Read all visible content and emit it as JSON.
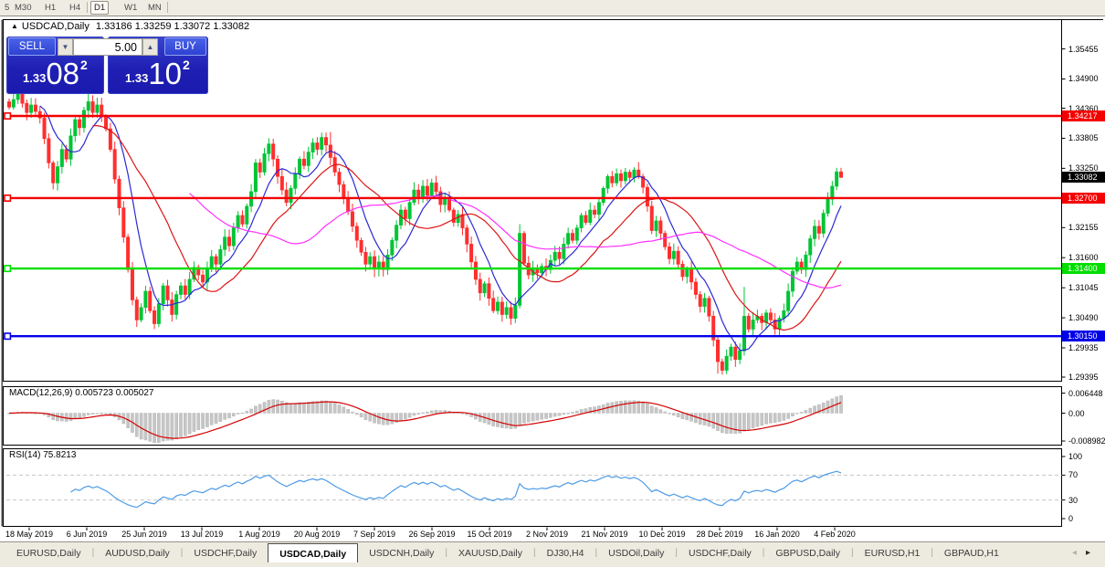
{
  "toolbar": {
    "timeframes": [
      {
        "label": "5",
        "selected": false
      },
      {
        "label": "M30",
        "selected": false
      },
      {
        "label": "H1",
        "selected": false
      },
      {
        "label": "H4",
        "selected": false
      },
      {
        "label": "D1",
        "selected": true
      },
      {
        "label": "W1",
        "selected": false
      },
      {
        "label": "MN",
        "selected": false
      }
    ]
  },
  "chart": {
    "title_arrow": "▲",
    "symbol": "USDCAD,Daily",
    "ohlc": "1.33186 1.33259 1.33072 1.33082"
  },
  "trade": {
    "sell_label": "SELL",
    "buy_label": "BUY",
    "volume": "5.00",
    "dec_icon": "▼",
    "inc_icon": "▲",
    "sell_prefix": "1.33",
    "sell_big": "08",
    "sell_sup": "2",
    "buy_prefix": "1.33",
    "buy_big": "10",
    "buy_sup": "2"
  },
  "macd": {
    "label": "MACD(12,26,9)",
    "value1": "0.005723",
    "value2": "0.005027"
  },
  "rsi": {
    "label": "RSI(14)",
    "value": "75.8213"
  },
  "tabs": {
    "items": [
      "EURUSD,Daily",
      "AUDUSD,Daily",
      "USDCHF,Daily",
      "USDCAD,Daily",
      "USDCNH,Daily",
      "XAUUSD,Daily",
      "DJ30,H4",
      "USDOil,Daily",
      "USDCHF,Daily",
      "GBPUSD,Daily",
      "EURUSD,H1",
      "GBPAUD,H1"
    ],
    "active": "USDCAD,Daily",
    "active_index": 3,
    "scroll_left": "◂",
    "scroll_right": "▸"
  },
  "chart_data": {
    "type": "candlestick",
    "symbol": "USDCAD",
    "timeframe": "Daily",
    "current_bar": {
      "open": 1.33186,
      "high": 1.33259,
      "low": 1.33072,
      "close": 1.33082
    },
    "current_price": {
      "value": 1.33082,
      "label": "1.33082",
      "badge_bg": "#000000",
      "badge_fg": "#FFFFFF"
    },
    "closes": [
      1.3438,
      1.3452,
      1.347,
      1.3445,
      1.3428,
      1.3442,
      1.343,
      1.3418,
      1.338,
      1.3335,
      1.3298,
      1.3328,
      1.336,
      1.3342,
      1.3385,
      1.3415,
      1.34,
      1.3432,
      1.3448,
      1.3428,
      1.3442,
      1.342,
      1.3398,
      1.336,
      1.3305,
      1.3252,
      1.3198,
      1.3138,
      1.3082,
      1.3045,
      1.3068,
      1.3098,
      1.3062,
      1.3038,
      1.3075,
      1.3108,
      1.3082,
      1.3055,
      1.3092,
      1.3108,
      1.3092,
      1.312,
      1.3142,
      1.3128,
      1.3115,
      1.314,
      1.3162,
      1.3148,
      1.3175,
      1.3198,
      1.3182,
      1.3215,
      1.3238,
      1.3222,
      1.3255,
      1.3282,
      1.3335,
      1.3318,
      1.3352,
      1.337,
      1.3342,
      1.331,
      1.3285,
      1.3262,
      1.3288,
      1.3315,
      1.3342,
      1.333,
      1.3355,
      1.3372,
      1.336,
      1.3382,
      1.3368,
      1.3345,
      1.3318,
      1.3295,
      1.327,
      1.3245,
      1.3218,
      1.3192,
      1.317,
      1.3148,
      1.3162,
      1.314,
      1.3152,
      1.3138,
      1.3165,
      1.3192,
      1.322,
      1.3248,
      1.3232,
      1.3262,
      1.3285,
      1.327,
      1.3292,
      1.3275,
      1.3298,
      1.3282,
      1.3258,
      1.3272,
      1.3248,
      1.3225,
      1.324,
      1.3215,
      1.3185,
      1.3152,
      1.312,
      1.3095,
      1.3112,
      1.3085,
      1.3062,
      1.3078,
      1.3055,
      1.3068,
      1.3048,
      1.3072,
      1.3205,
      1.315,
      1.3128,
      1.314,
      1.3132,
      1.3144,
      1.3138,
      1.3155,
      1.317,
      1.3158,
      1.3185,
      1.3205,
      1.3192,
      1.3215,
      1.3238,
      1.3225,
      1.3248,
      1.324,
      1.3262,
      1.3288,
      1.331,
      1.3298,
      1.3315,
      1.3302,
      1.3318,
      1.3308,
      1.3322,
      1.331,
      1.329,
      1.3255,
      1.321,
      1.3228,
      1.3205,
      1.318,
      1.3158,
      1.3172,
      1.3148,
      1.3125,
      1.3138,
      1.3115,
      1.3092,
      1.307,
      1.3085,
      1.3052,
      1.3008,
      1.2968,
      1.2952,
      1.2978,
      1.2995,
      1.2972,
      1.2988,
      1.3052,
      1.3028,
      1.3045,
      1.3052,
      1.304,
      1.3058,
      1.3045,
      1.3028,
      1.3048,
      1.3062,
      1.3098,
      1.3135,
      1.3152,
      1.3138,
      1.3165,
      1.3195,
      1.3218,
      1.3205,
      1.3242,
      1.3268,
      1.3292,
      1.33186,
      1.33082
    ],
    "wick_overrides": {
      "2": {
        "h": 1.3482
      },
      "10": {
        "l": 1.3286
      },
      "18": {
        "h": 1.347
      },
      "29": {
        "l": 1.3032
      },
      "33": {
        "l": 1.3028
      },
      "73": {
        "h": 1.3392
      },
      "83": {
        "l": 1.3124
      },
      "114": {
        "l": 1.3036
      },
      "116": {
        "h": 1.3222
      },
      "161": {
        "l": 1.2946
      },
      "167": {
        "h": 1.3106
      },
      "188": {
        "h": 1.3326
      },
      "189": {
        "h": 1.33259,
        "l": 1.33072
      }
    },
    "candle_up_color": "#00C435",
    "candle_down_color": "#FF2E2E",
    "horizontal_levels": [
      {
        "price": 1.34217,
        "label": "1.34217",
        "color": "#F50000",
        "badge_fg": "#FFFFFF"
      },
      {
        "price": 1.327,
        "label": "1.32700",
        "color": "#F50000",
        "badge_fg": "#FFFFFF"
      },
      {
        "price": 1.314,
        "label": "1.31400",
        "color": "#00DE00",
        "badge_fg": "#FFFFFF"
      },
      {
        "price": 1.3015,
        "label": "1.30150",
        "color": "#0000E8",
        "badge_fg": "#FFFFFF"
      }
    ],
    "price_axis_labels": [
      "1.35455",
      "1.34900",
      "1.34360",
      "1.33805",
      "1.33250",
      "1.32155",
      "1.31600",
      "1.31045",
      "1.30490",
      "1.29935",
      "1.29395"
    ],
    "date_labels": [
      "18 May 2019",
      "6 Jun 2019",
      "25 Jun 2019",
      "13 Jul 2019",
      "1 Aug 2019",
      "20 Aug 2019",
      "7 Sep 2019",
      "26 Sep 2019",
      "15 Oct 2019",
      "2 Nov 2019",
      "21 Nov 2019",
      "10 Dec 2019",
      "28 Dec 2019",
      "16 Jan 2020",
      "4 Feb 2020"
    ],
    "moving_averages": [
      {
        "period": 8,
        "color": "#2A2AD4"
      },
      {
        "period": 20,
        "color": "#DC1414"
      },
      {
        "period": 42,
        "color": "#FF30FF"
      }
    ],
    "macd": {
      "params": [
        12,
        26,
        9
      ],
      "hist_color": "#C6C6C6",
      "hist_stroke": "#B0B0B0",
      "signal_color": "#D40000",
      "axis_labels": [
        {
          "text": "0.006448",
          "value": 0.006448
        },
        {
          "text": "0.00",
          "value": 0
        },
        {
          "text": "-0.008982",
          "value": -0.008982
        }
      ]
    },
    "rsi": {
      "period": 14,
      "color": "#4D9BE6",
      "level_line_color": "#C8C8C8",
      "levels": [
        70,
        30
      ],
      "axis_labels": [
        {
          "text": "100",
          "value": 100
        },
        {
          "text": "70",
          "value": 70
        },
        {
          "text": "30",
          "value": 30
        },
        {
          "text": "0",
          "value": 0
        }
      ]
    }
  }
}
